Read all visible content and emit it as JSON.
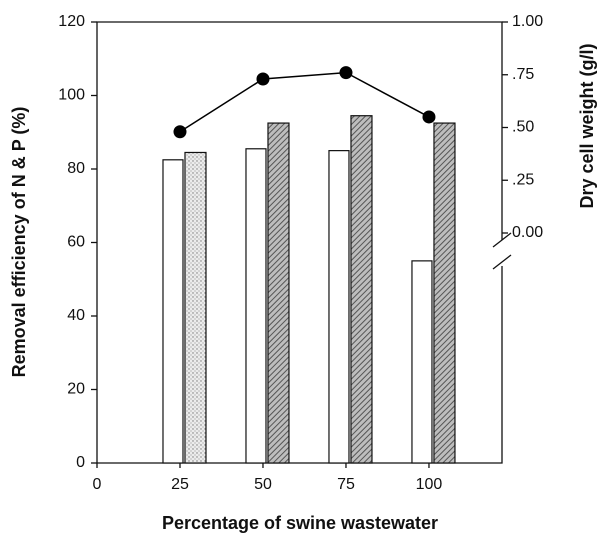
{
  "chart_data": {
    "type": "bar",
    "xlabel": "Percentage of swine wastewater",
    "ylabel": "Removal efficiency of N & P (%)",
    "y2label": "Dry cell weight (g/l)",
    "x": [
      25,
      50,
      75,
      100
    ],
    "xlim": [
      0,
      122
    ],
    "xticks": [
      0,
      25,
      50,
      75,
      100
    ],
    "ylim": [
      0,
      120
    ],
    "yticks": [
      0,
      20,
      40,
      60,
      80,
      100,
      120
    ],
    "y2lim": [
      0,
      1
    ],
    "y2ticks": [
      {
        "value": 1,
        "label": "1.00"
      },
      {
        "value": 0.75,
        "label": ".75"
      },
      {
        "value": 0.5,
        "label": ".50"
      },
      {
        "value": 0.25,
        "label": ".25"
      },
      {
        "value": 0,
        "label": "0.00"
      }
    ],
    "series": [
      {
        "type": "bar",
        "color": "#ffffff",
        "values": [
          82.5,
          85.5,
          85,
          55
        ]
      },
      {
        "type": "bar",
        "color": "#8a8a8a",
        "patterns": [
          "dots",
          "hatch",
          "hatch",
          "hatch"
        ],
        "values": [
          84.5,
          92.5,
          94.5,
          92.5
        ]
      },
      {
        "type": "line",
        "axis": "y2",
        "color": "#000000",
        "values": [
          0.48,
          0.73,
          0.76,
          0.55
        ]
      }
    ]
  }
}
